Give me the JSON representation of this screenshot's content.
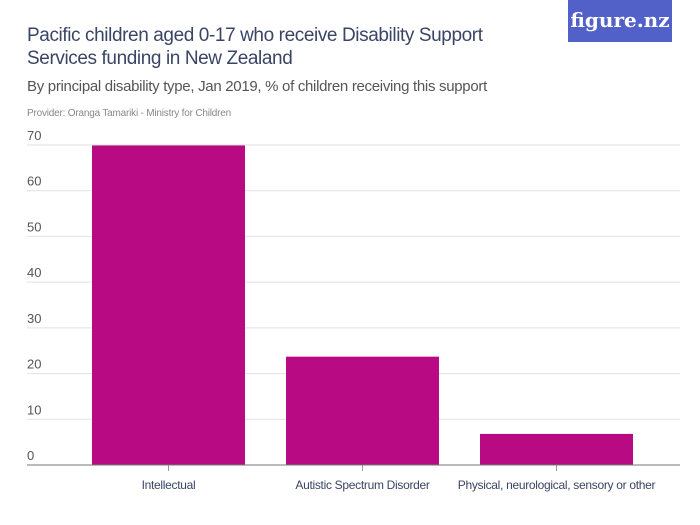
{
  "header": {
    "title": "Pacific children aged 0-17 who receive Disability Support Services funding in New Zealand",
    "subtitle": "By principal disability type, Jan 2019, % of children receiving this support",
    "provider": "Provider: Oranga Tamariki - Ministry for Children",
    "logo": "figure.nz"
  },
  "chart_data": {
    "type": "bar",
    "categories": [
      "Intellectual",
      "Autistic Spectrum Disorder",
      "Physical, neurological, sensory or other"
    ],
    "values": [
      69.9,
      23.7,
      6.8
    ],
    "ylim": [
      0,
      70
    ],
    "yticks": [
      0,
      10,
      20,
      30,
      40,
      50,
      60,
      70
    ],
    "grid": true,
    "bar_color": "#b80b83",
    "xlabel": "",
    "ylabel": ""
  }
}
